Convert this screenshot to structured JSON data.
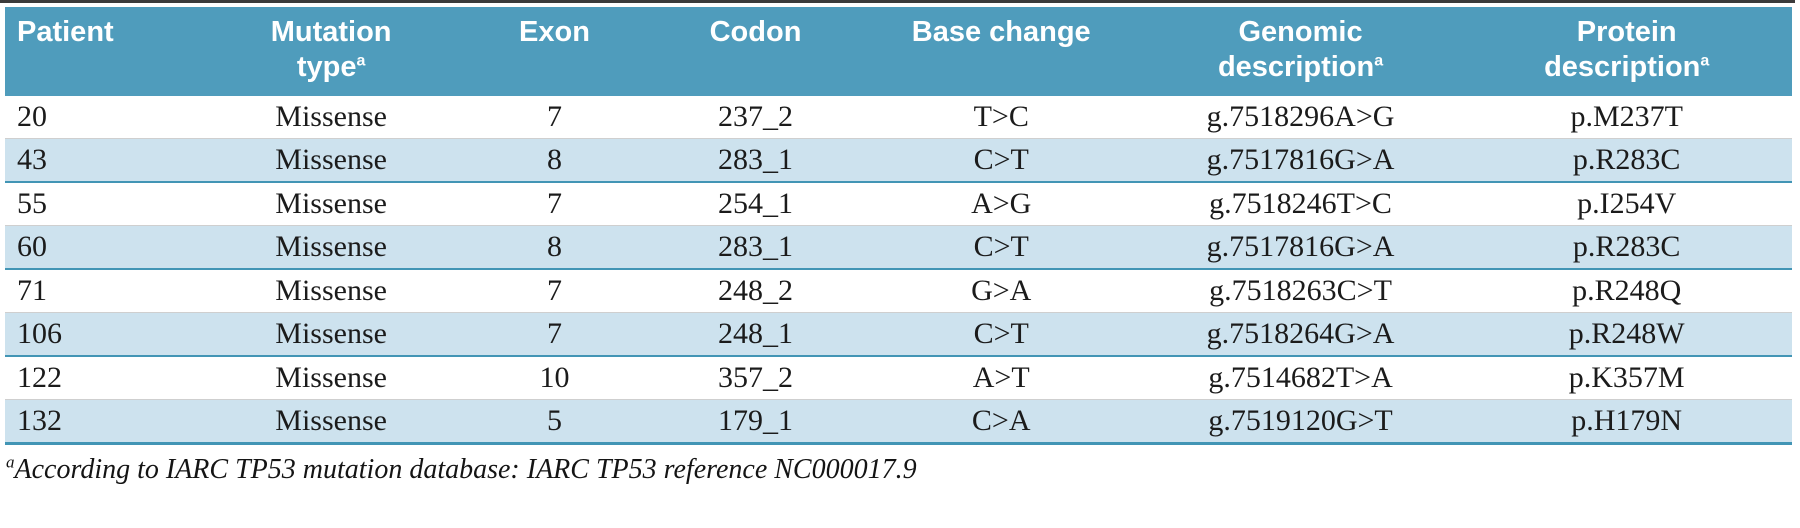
{
  "colors": {
    "header_bg": "#4f9cbc",
    "header_text": "#ffffff",
    "row_alt_bg": "#cde2ee",
    "row_separator_teal": "#4295b5",
    "row_separator_gray": "#cfcfcf",
    "top_rule": "#3b3b3b",
    "body_text": "#1b1b1b"
  },
  "table": {
    "sup_marker": "a",
    "columns": [
      {
        "lines": [
          "Patient"
        ],
        "sup": false,
        "align": "left"
      },
      {
        "lines": [
          "Mutation",
          "type"
        ],
        "sup": true,
        "align": "center"
      },
      {
        "lines": [
          "Exon"
        ],
        "sup": false,
        "align": "center"
      },
      {
        "lines": [
          "Codon"
        ],
        "sup": false,
        "align": "center"
      },
      {
        "lines": [
          "Base change"
        ],
        "sup": false,
        "align": "center"
      },
      {
        "lines": [
          "Genomic",
          "description"
        ],
        "sup": true,
        "align": "center"
      },
      {
        "lines": [
          "Protein",
          "description"
        ],
        "sup": true,
        "align": "center"
      }
    ],
    "rows": [
      [
        "20",
        "Missense",
        "7",
        "237_2",
        "T>C",
        "g.7518296A>G",
        "p.M237T"
      ],
      [
        "43",
        "Missense",
        "8",
        "283_1",
        "C>T",
        "g.7517816G>A",
        "p.R283C"
      ],
      [
        "55",
        "Missense",
        "7",
        "254_1",
        "A>G",
        "g.7518246T>C",
        "p.I254V"
      ],
      [
        "60",
        "Missense",
        "8",
        "283_1",
        "C>T",
        "g.7517816G>A",
        "p.R283C"
      ],
      [
        "71",
        "Missense",
        "7",
        "248_2",
        "G>A",
        "g.7518263C>T",
        "p.R248Q"
      ],
      [
        "106",
        "Missense",
        "7",
        "248_1",
        "C>T",
        "g.7518264G>A",
        "p.R248W"
      ],
      [
        "122",
        "Missense",
        "10",
        "357_2",
        "A>T",
        "g.7514682T>A",
        "p.K357M"
      ],
      [
        "132",
        "Missense",
        "5",
        "179_1",
        "C>A",
        "g.7519120G>T",
        "p.H179N"
      ]
    ],
    "footnote": {
      "marker": "a",
      "text": "According to IARC TP53 mutation database: IARC TP53 reference NC000017.9"
    }
  }
}
